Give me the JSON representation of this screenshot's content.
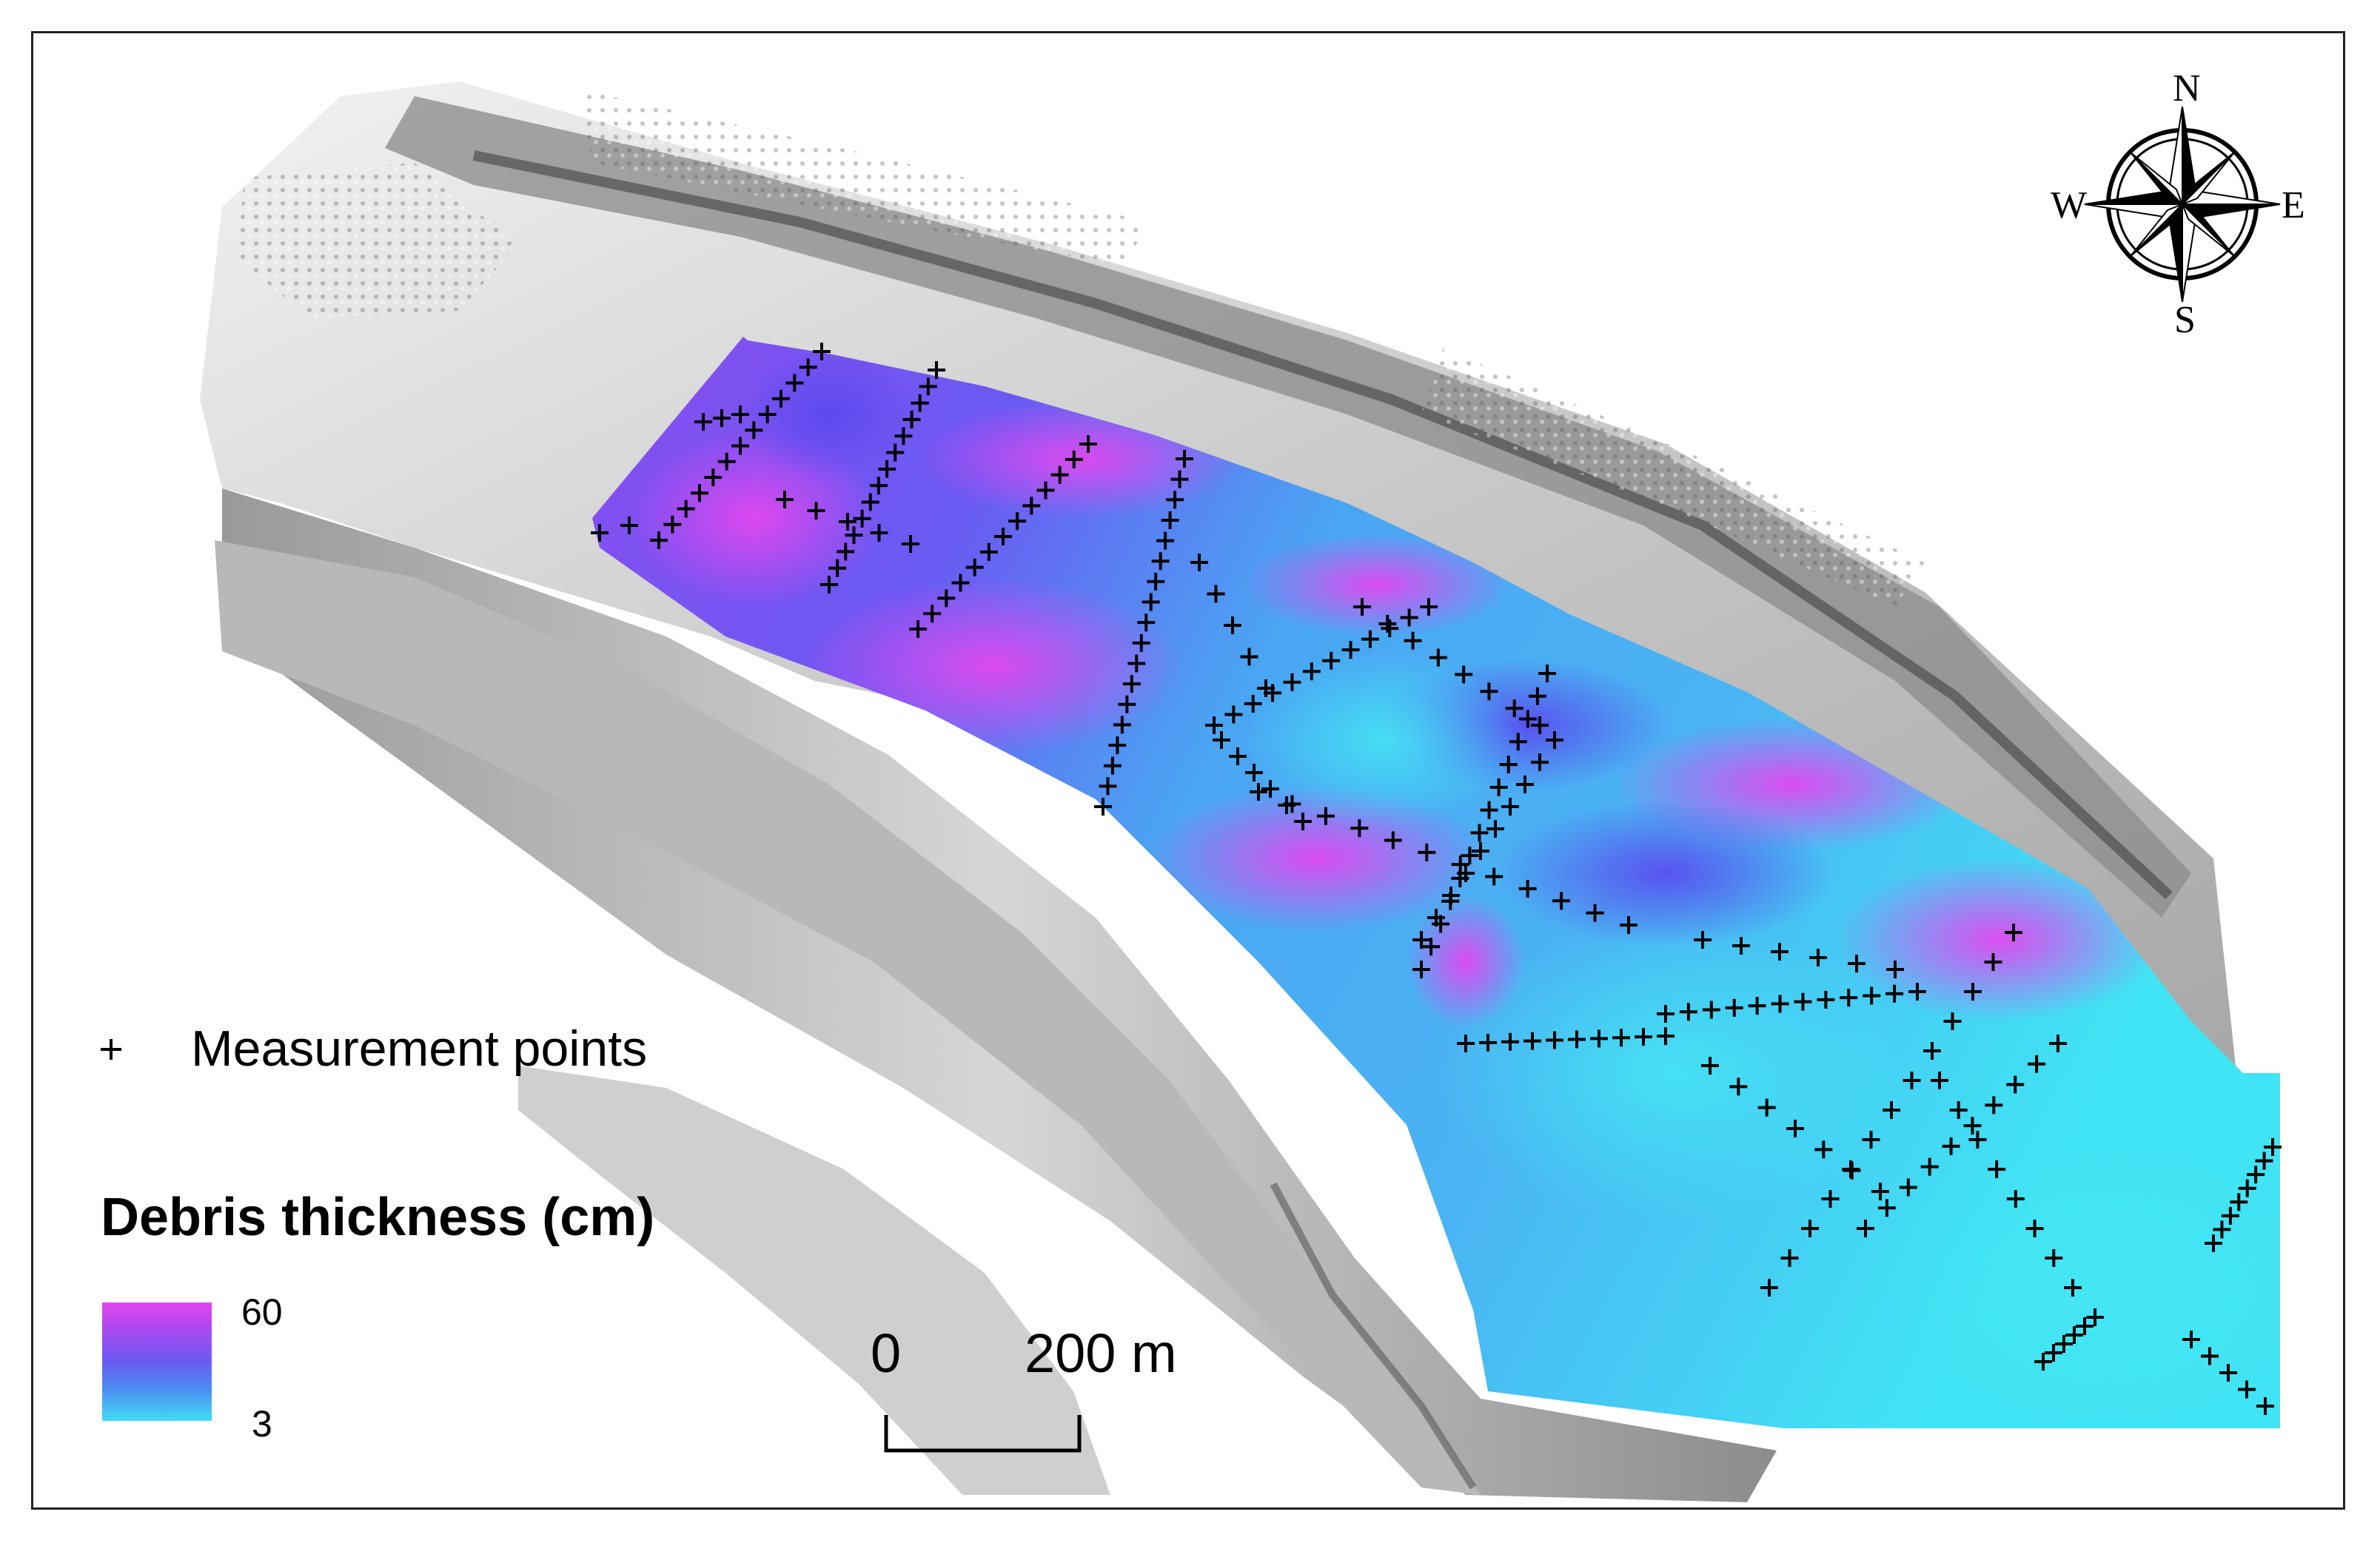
{
  "legend": {
    "marker_symbol": "+",
    "marker_label": "Measurement points",
    "ramp_title": "Debris thickness (cm)",
    "ramp_max": "60",
    "ramp_min": "3",
    "ramp_colors": [
      "#e247f0",
      "#b048f0",
      "#6a5af2",
      "#4d8af2",
      "#41dcf4"
    ]
  },
  "scale_bar": {
    "start_label": "0",
    "end_label": "200 m"
  },
  "compass": {
    "north": "N",
    "south": "S",
    "east": "E",
    "west": "W"
  },
  "colors": {
    "hillshade_light": "#e6e6e6",
    "hillshade_dark": "#6e6e6e",
    "debris_high": "#e247f0",
    "debris_low": "#41dcf4",
    "marker": "#000000"
  }
}
